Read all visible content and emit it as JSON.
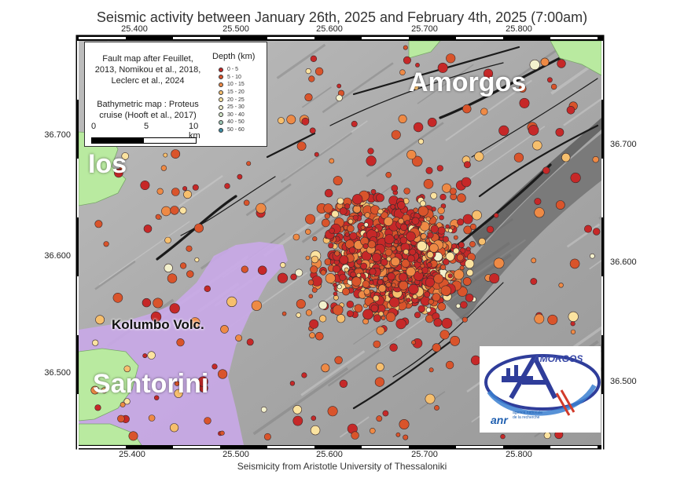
{
  "title": "Seismic activity between January 26th, 2025 and February 4th, 2025 (7:00am)",
  "footer": "Seismicity from Aristotle University of Thessaloniki",
  "longitude_ticks": [
    "25.400",
    "25.500",
    "25.600",
    "25.700",
    "25.800"
  ],
  "latitude_ticks": [
    "36.700",
    "36.600",
    "36.500"
  ],
  "places": {
    "amorgos": "Amorgos",
    "ios": "Ios",
    "santorini": "Santorini",
    "kolumbo": "Kolumbo Volc."
  },
  "legend": {
    "credits": [
      "Fault map after Feuillet,",
      "2013, Nomikou et al., 2018,",
      "Leclerc et al., 2024"
    ],
    "bathymetry": [
      "Bathymetric map : Proteus",
      "cruise (Hooft et al., 2017)"
    ],
    "depth_title": "Depth (km)",
    "depth_classes": [
      {
        "label": "0 - 5",
        "color": "#c62828"
      },
      {
        "label": "5 - 10",
        "color": "#d9542b"
      },
      {
        "label": "10 - 15",
        "color": "#ee8a45"
      },
      {
        "label": "15 - 20",
        "color": "#f6bf6d"
      },
      {
        "label": "20 - 25",
        "color": "#fbe3a0"
      },
      {
        "label": "25 - 30",
        "color": "#f3f1cd"
      },
      {
        "label": "30 - 40",
        "color": "#d2e6c6"
      },
      {
        "label": "40 - 50",
        "color": "#9cc8b6"
      },
      {
        "label": "50 - 60",
        "color": "#3f8fa6"
      }
    ],
    "scale_labels": [
      "0",
      "5",
      "10 km"
    ]
  },
  "logo": {
    "name": "AMORGOS",
    "agency": "anr",
    "agency_sub": "agence nationale de la recherche"
  },
  "colors": {
    "land": "#b9eaa0",
    "volcanic": "#c9a8e8",
    "sea": "#9e9e9e",
    "logo_blue": "#2f3d9a"
  }
}
